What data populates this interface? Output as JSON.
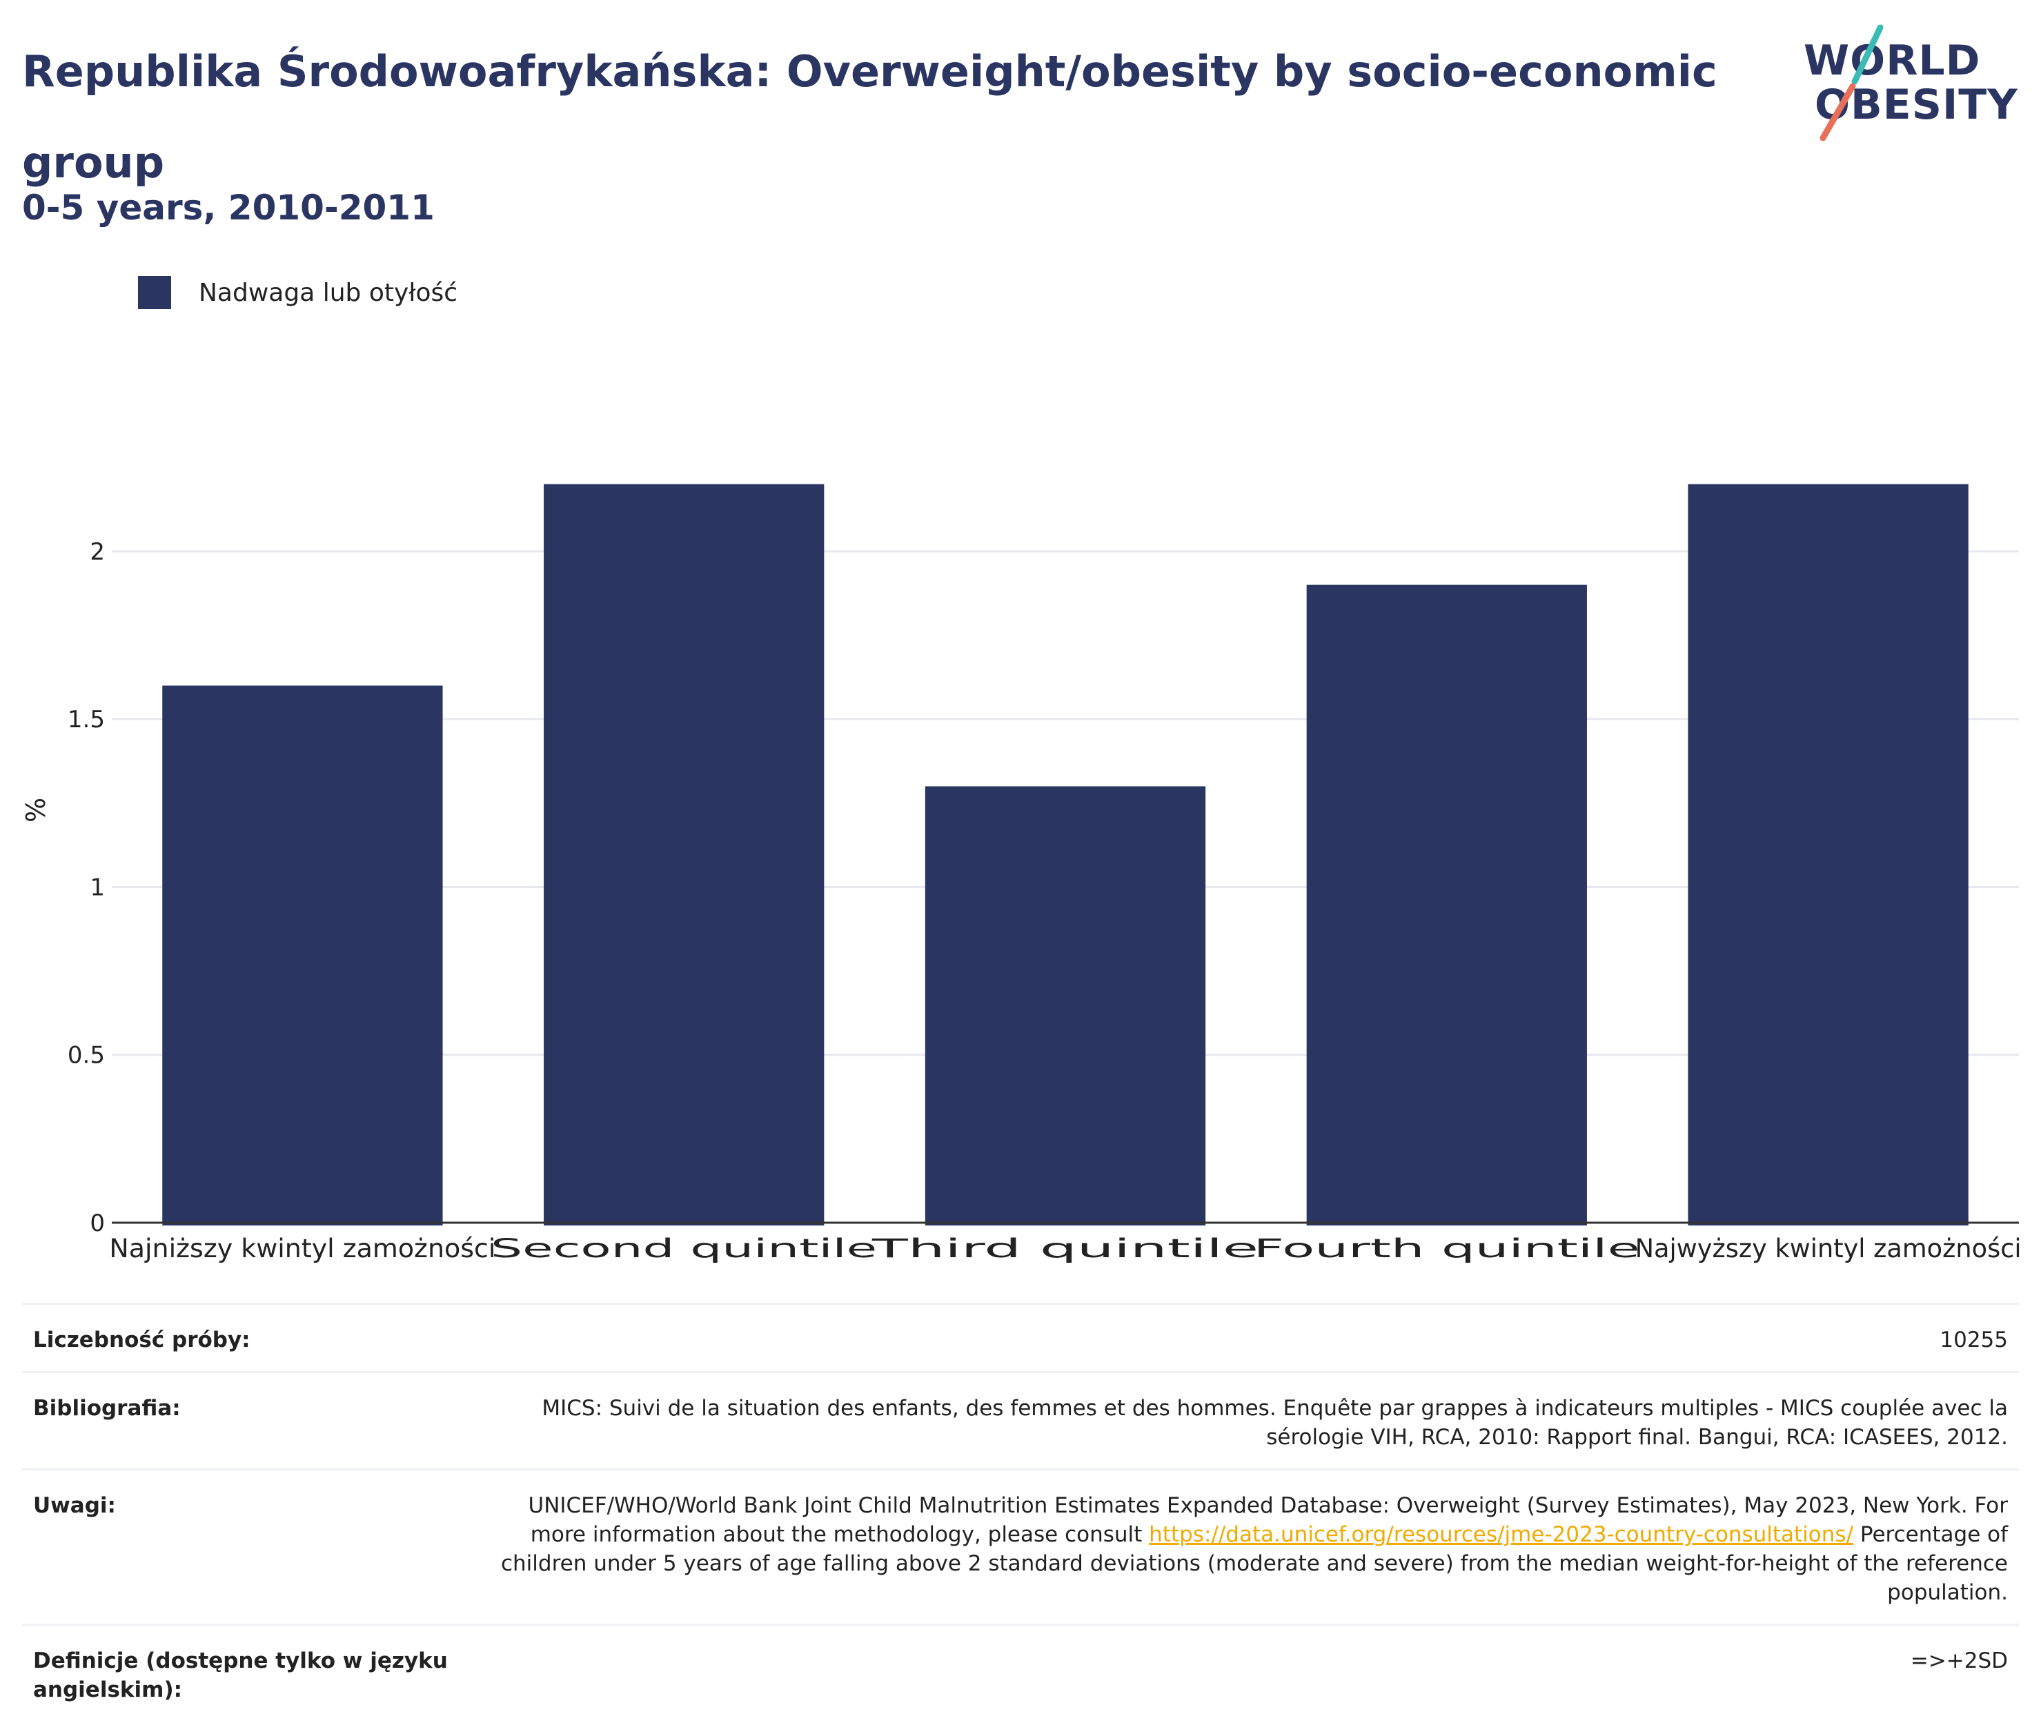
{
  "header": {
    "title_line1": "Republika Środowoafrykańska: Overweight/obesity by socio-economic",
    "title_line2": "group",
    "subtitle": "0-5 years, 2010-2011"
  },
  "logo": {
    "line1": "WORLD",
    "line2": "OBESITY",
    "colors": {
      "text": "#2a3562",
      "teal": "#3bbbb5",
      "coral": "#e8705a"
    }
  },
  "colors": {
    "bar": "#2a3562",
    "grid": "#e6e8ee",
    "axis": "#333333",
    "link": "#f0ab00"
  },
  "chart_data": {
    "type": "bar",
    "categories": [
      "Najniższy kwintyl zamożności",
      "Second quintile",
      "Third quintile",
      "Fourth quintile",
      "Najwyższy kwintyl zamożności"
    ],
    "series": [
      {
        "name": "Nadwaga lub otyłość",
        "values": [
          1.6,
          2.2,
          1.3,
          1.9,
          2.2
        ]
      }
    ],
    "ylabel": "%",
    "ylim": [
      0,
      2.45
    ],
    "yticks": [
      0,
      0.5,
      1,
      1.5,
      2
    ],
    "ytick_labels": [
      "0",
      "0.5",
      "1",
      "1.5",
      "2"
    ],
    "grid": true,
    "legend_position": "top-left"
  },
  "info": {
    "rows": [
      {
        "label": "Liczebność próby:",
        "value": "10255"
      },
      {
        "label": "Bibliografia:",
        "value": "MICS: Suivi de la situation des enfants, des femmes et des hommes. Enquête par grappes à indicateurs multiples - MICS couplée avec la sérologie VIH, RCA, 2010: Rapport final. Bangui, RCA: ICASEES, 2012."
      },
      {
        "label": "Uwagi:",
        "value_pre": "UNICEF/WHO/World Bank Joint Child Malnutrition Estimates Expanded Database: Overweight (Survey Estimates), May 2023, New York. For more information about the methodology, please consult ",
        "link": "https://data.unicef.org/resources/jme-2023-country-consultations/",
        "value_post": " Percentage of children under 5 years of age falling above 2 standard deviations (moderate and severe) from the median weight-for-height of the reference population."
      },
      {
        "label": "Definicje (dostępne tylko w języku angielskim):",
        "value": "=>+2SD"
      }
    ]
  }
}
